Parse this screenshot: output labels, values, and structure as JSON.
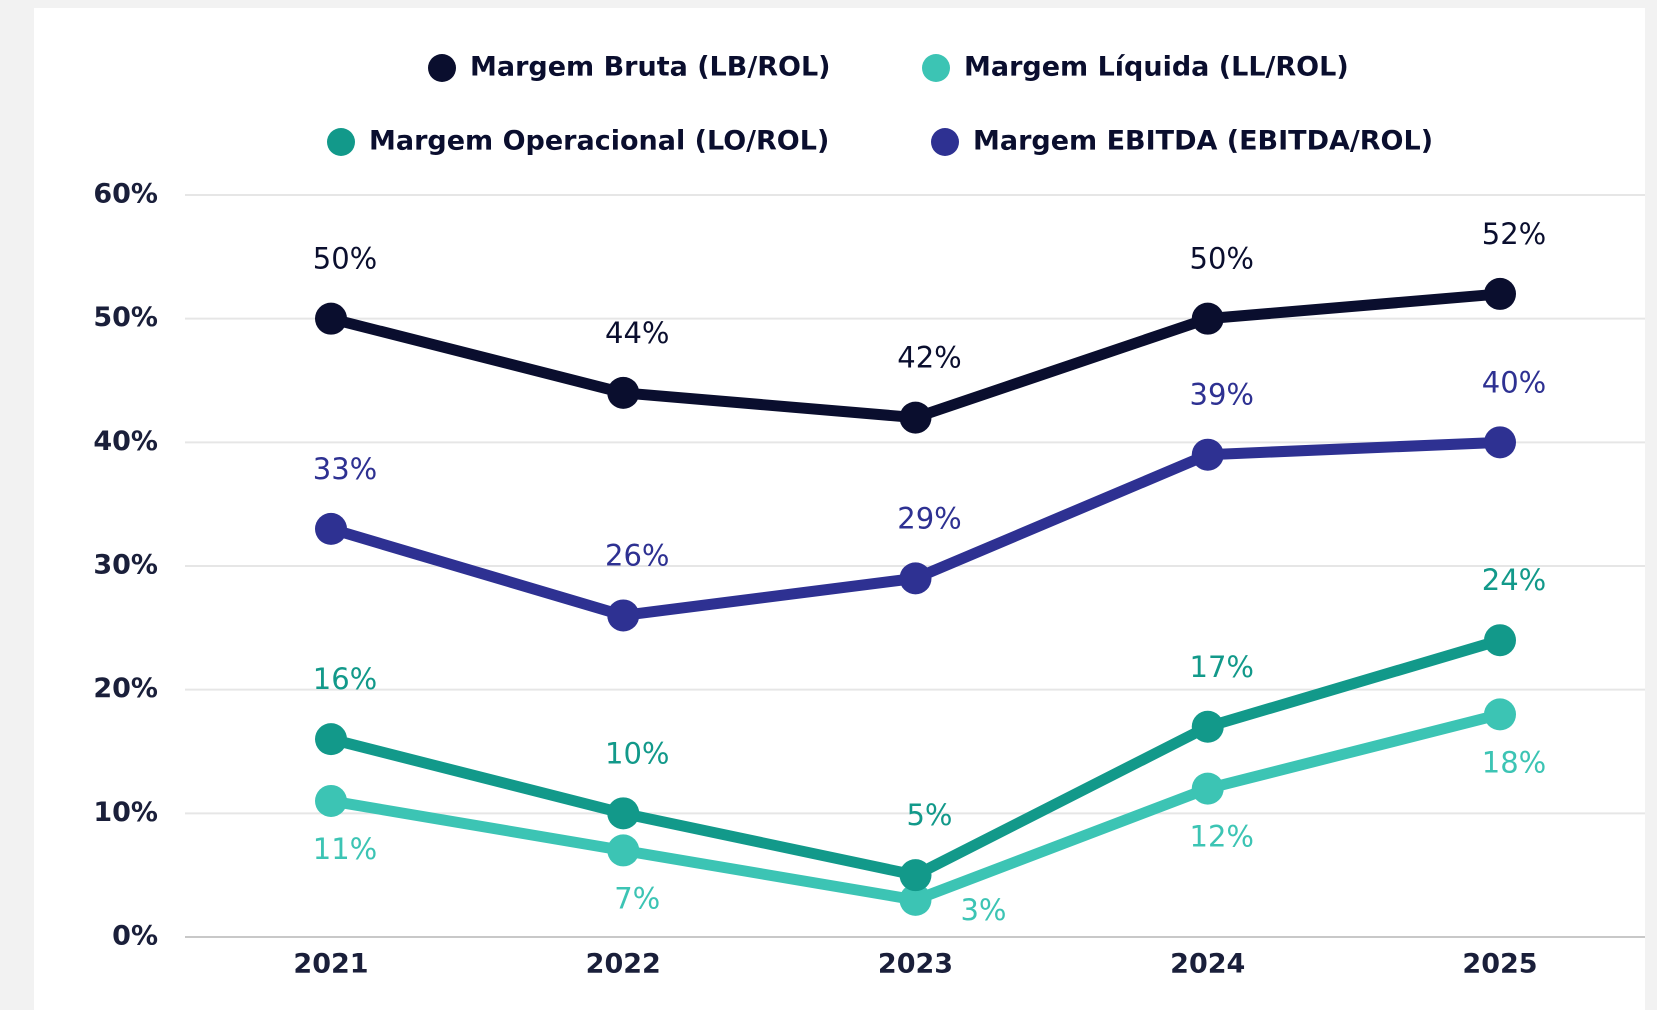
{
  "chart_data": {
    "type": "line",
    "categories": [
      "2021",
      "2022",
      "2023",
      "2024",
      "2025"
    ],
    "series": [
      {
        "name": "Margem Bruta (LB/ROL)",
        "color": "#0a0e2e",
        "values": [
          50,
          44,
          42,
          50,
          52
        ],
        "value_labels": [
          "50%",
          "44%",
          "42%",
          "50%",
          "52%"
        ]
      },
      {
        "name": "Margem Líquida (LL/ROL)",
        "color": "#3cc4b4",
        "values": [
          11,
          7,
          3,
          12,
          18
        ],
        "value_labels": [
          "11%",
          "7%",
          "3%",
          "12%",
          "18%"
        ]
      },
      {
        "name": "Margem Operacional (LO/ROL)",
        "color": "#12998a",
        "values": [
          16,
          10,
          5,
          17,
          24
        ],
        "value_labels": [
          "16%",
          "10%",
          "5%",
          "17%",
          "24%"
        ]
      },
      {
        "name": "Margem EBITDA (EBITDA/ROL)",
        "color": "#2e3192",
        "values": [
          33,
          26,
          29,
          39,
          40
        ],
        "value_labels": [
          "33%",
          "26%",
          "29%",
          "39%",
          "40%"
        ]
      }
    ],
    "ylim": [
      0,
      60
    ],
    "yticks": [
      {
        "value": 0,
        "label": "0%"
      },
      {
        "value": 10,
        "label": "10%"
      },
      {
        "value": 20,
        "label": "20%"
      },
      {
        "value": 30,
        "label": "30%"
      },
      {
        "value": 40,
        "label": "40%"
      },
      {
        "value": 50,
        "label": "50%"
      },
      {
        "value": 60,
        "label": "60%"
      }
    ],
    "grid": true
  }
}
